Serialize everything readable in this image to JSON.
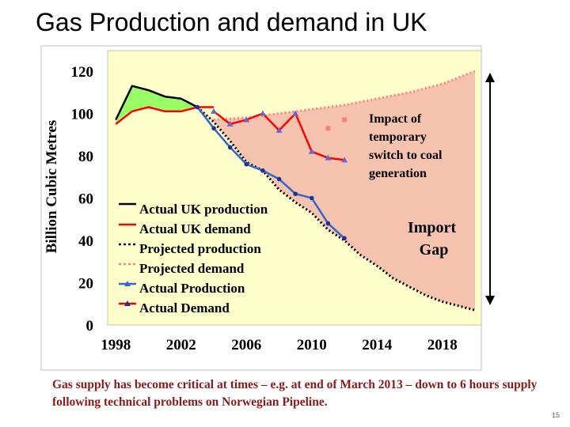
{
  "slide": {
    "title": "Gas Production and demand in UK",
    "caption": "Gas supply has become critical at times – e.g. at end of March 2013 – down to 6 hours supply following technical problems on Norwegian Pipeline.",
    "page_number": "15"
  },
  "chart_data": {
    "type": "line",
    "title": "",
    "xlabel": "",
    "ylabel": "Billion Cubic Metres",
    "xlim": [
      1997.5,
      2020
    ],
    "ylim": [
      0,
      120
    ],
    "x_ticks": [
      1998,
      2002,
      2006,
      2010,
      2014,
      2018
    ],
    "y_ticks": [
      0,
      20,
      40,
      60,
      80,
      100,
      120
    ],
    "grid": false,
    "legend_position": "lower-left",
    "colors": {
      "plot_background": "#FFFFCC",
      "surplus_fill": "#99FF66",
      "import_gap_fill": "#F4B8A8",
      "production": "#000000",
      "demand": "#FF0000",
      "projected_demand": "#FF8080",
      "actual_production_marker": "#3366CC",
      "actual_demand_marker": "#FF5050"
    },
    "series": [
      {
        "name": "Actual UK production",
        "style": "solid",
        "color": "#000000",
        "x": [
          1998,
          1999,
          2000,
          2001,
          2002,
          2003
        ],
        "y": [
          97,
          113,
          111,
          108,
          107,
          103
        ]
      },
      {
        "name": "Actual UK demand",
        "style": "solid",
        "color": "#FF0000",
        "x": [
          1998,
          1999,
          2000,
          2001,
          2002,
          2003,
          2004
        ],
        "y": [
          95,
          101,
          103,
          101,
          101,
          103,
          103
        ]
      },
      {
        "name": "Projected production",
        "style": "dotted",
        "color": "#000000",
        "x": [
          2003,
          2004,
          2005,
          2006,
          2007,
          2008,
          2009,
          2010,
          2011,
          2012,
          2013,
          2014,
          2015,
          2016,
          2017,
          2018,
          2019,
          2020
        ],
        "y": [
          103,
          96,
          87,
          77,
          73,
          64,
          58,
          53,
          45,
          40,
          33,
          28,
          22,
          18,
          14,
          11,
          9,
          7
        ]
      },
      {
        "name": "Projected demand",
        "style": "dotted",
        "color": "#FF8080",
        "x": [
          2004,
          2006,
          2008,
          2010,
          2012,
          2014,
          2016,
          2018,
          2020
        ],
        "y": [
          97,
          98,
          100,
          102,
          104,
          107,
          110,
          114,
          120
        ]
      },
      {
        "name": "Actual Production",
        "style": "line-marker",
        "color": "#3366CC",
        "x": [
          2003,
          2004,
          2005,
          2006,
          2007,
          2008,
          2009,
          2010,
          2011,
          2012
        ],
        "y": [
          103,
          93,
          84,
          76,
          73,
          69,
          62,
          60,
          48,
          41
        ]
      },
      {
        "name": "Actual Demand",
        "style": "line-marker",
        "color": "#FF0000",
        "x": [
          2004,
          2005,
          2006,
          2007,
          2008,
          2009,
          2010,
          2011,
          2012
        ],
        "y": [
          101,
          95,
          97,
          100,
          92,
          100,
          82,
          79,
          78
        ]
      }
    ],
    "projected_demand_points": {
      "x": [
        2011,
        2012
      ],
      "y": [
        93,
        97
      ]
    },
    "annotations": [
      {
        "text": "Impact of temporary switch to coal generation"
      },
      {
        "text": "Import Gap"
      }
    ]
  }
}
